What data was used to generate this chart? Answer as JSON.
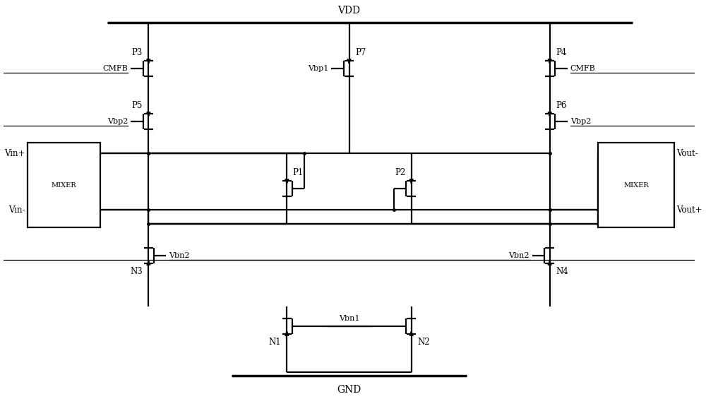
{
  "fig_width": 10.0,
  "fig_height": 5.82,
  "bg_color": "#ffffff",
  "line_color": "#000000",
  "lw": 1.6,
  "lw_rail": 2.5,
  "fs_title": 10,
  "fs_label": 8.5,
  "fs_small": 8.0,
  "fs_mixer": 7.0,
  "xmin": 0,
  "xmax": 100,
  "ymin": 0,
  "ymax": 58.2,
  "Yvdd": 55.0,
  "Ygnd": 5.0,
  "Xm1": 3.5,
  "Xm2": 14.0,
  "Xmr1": 86.0,
  "Xmr2": 97.0,
  "Xp3": 21.0,
  "Xp4": 79.0,
  "Xp7": 50.0,
  "Xp1": 41.0,
  "Xp2": 59.0,
  "Xn3": 21.0,
  "Xn4": 79.0,
  "Xn1": 41.0,
  "Xn2": 59.0,
  "Yp3": 48.5,
  "Yp4": 48.5,
  "Yp5": 41.0,
  "Yp6": 41.0,
  "Yp7": 48.5,
  "Yp1": 31.5,
  "Yn3": 22.0,
  "Yn4": 22.0,
  "Yn1": 12.0,
  "Yn2": 12.0,
  "Y_srctail": 36.5,
  "Y_outL": 26.5,
  "Y_outR": 26.5,
  "Y_vin_p": 36.5,
  "Y_vin_n": 28.5,
  "mixer_ytop": 38.0,
  "mixer_ybot": 26.0,
  "s": 1.9,
  "vdd_label": "VDD",
  "gnd_label": "GND",
  "p1_label": "P1",
  "p2_label": "P2",
  "p3_label": "P3",
  "p4_label": "P4",
  "p5_label": "P5",
  "p6_label": "P6",
  "p7_label": "P7",
  "n1_label": "N1",
  "n2_label": "N2",
  "n3_label": "N3",
  "n4_label": "N4",
  "cmfb_label": "CMFB",
  "vbp1_label": "Vbp1",
  "vbp2_label": "Vbp2",
  "vbn1_label": "Vbn1",
  "vbn2_label": "Vbn2",
  "vinp_label": "Vin+",
  "vinn_label": "Vin-",
  "voutn_label": "Vout-",
  "voutp_label": "Vout+",
  "mixer_label": "MIXER"
}
